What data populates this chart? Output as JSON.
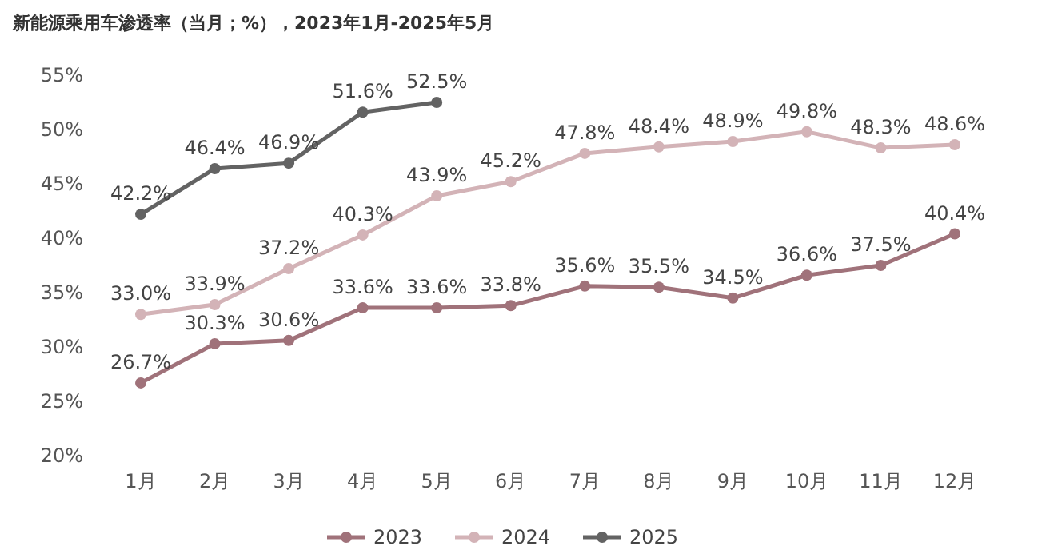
{
  "chart_data": {
    "type": "line",
    "title": "新能源乘用车渗透率（当月；%），2023年1月-2025年5月",
    "categories": [
      "1月",
      "2月",
      "3月",
      "4月",
      "5月",
      "6月",
      "7月",
      "8月",
      "9月",
      "10月",
      "11月",
      "12月"
    ],
    "ylim": [
      20,
      55
    ],
    "yticks": [
      {
        "value": 20,
        "label": "20%"
      },
      {
        "value": 25,
        "label": "25%"
      },
      {
        "value": 30,
        "label": "30%"
      },
      {
        "value": 35,
        "label": "35%"
      },
      {
        "value": 40,
        "label": "40%"
      },
      {
        "value": 45,
        "label": "45%"
      },
      {
        "value": 50,
        "label": "50%"
      },
      {
        "value": 55,
        "label": "55%"
      }
    ],
    "grid": false,
    "legend": "bottom",
    "marker": "circle",
    "line_style": "solid",
    "series": [
      {
        "name": "2023",
        "color": "#a0727a",
        "values": [
          26.7,
          30.3,
          30.6,
          33.6,
          33.6,
          33.8,
          35.6,
          35.5,
          34.5,
          36.6,
          37.5,
          40.4
        ],
        "value_labels": [
          "26.7%",
          "30.3%",
          "30.6%",
          "33.6%",
          "33.6%",
          "33.8%",
          "35.6%",
          "35.5%",
          "34.5%",
          "36.6%",
          "37.5%",
          "40.4%"
        ]
      },
      {
        "name": "2024",
        "color": "#d3b3b7",
        "values": [
          33.0,
          33.9,
          37.2,
          40.3,
          43.9,
          45.2,
          47.8,
          48.4,
          48.9,
          49.8,
          48.3,
          48.6
        ],
        "value_labels": [
          "33.0%",
          "33.9%",
          "37.2%",
          "40.3%",
          "43.9%",
          "45.2%",
          "47.8%",
          "48.4%",
          "48.9%",
          "49.8%",
          "48.3%",
          "48.6%"
        ]
      },
      {
        "name": "2025",
        "color": "#636363",
        "values": [
          42.2,
          46.4,
          46.9,
          51.6,
          52.5,
          null,
          null,
          null,
          null,
          null,
          null,
          null
        ],
        "value_labels": [
          "42.2%",
          "46.4%",
          "46.9%",
          "51.6%",
          "52.5%",
          null,
          null,
          null,
          null,
          null,
          null,
          null
        ]
      }
    ]
  }
}
